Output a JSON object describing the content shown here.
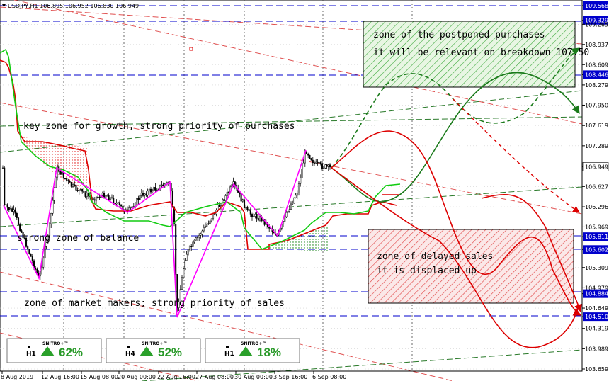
{
  "chart_data": {
    "type": "candlestick",
    "header": "USDJPY,H1  106.895 106.952 106.830 106.949",
    "price_labels": [
      {
        "value": "109.568",
        "highlight": true
      },
      {
        "value": "109.329",
        "highlight": true
      },
      {
        "value": "109.265",
        "highlight": false
      },
      {
        "value": "108.937",
        "highlight": false
      },
      {
        "value": "108.609",
        "highlight": false
      },
      {
        "value": "108.446",
        "highlight": true
      },
      {
        "value": "108.279",
        "highlight": false
      },
      {
        "value": "107.950",
        "highlight": false
      },
      {
        "value": "107.619",
        "highlight": false
      },
      {
        "value": "107.289",
        "highlight": false
      },
      {
        "value": "106.949",
        "highlight": "current"
      },
      {
        "value": "106.627",
        "highlight": false
      },
      {
        "value": "106.296",
        "highlight": false
      },
      {
        "value": "105.969",
        "highlight": false
      },
      {
        "value": "105.811",
        "highlight": true
      },
      {
        "value": "105.602",
        "highlight": true
      },
      {
        "value": "105.309",
        "highlight": false
      },
      {
        "value": "104.979",
        "highlight": false
      },
      {
        "value": "104.884",
        "highlight": true
      },
      {
        "value": "104.649",
        "highlight": false
      },
      {
        "value": "104.510",
        "highlight": true
      },
      {
        "value": "104.319",
        "highlight": false
      },
      {
        "value": "103.989",
        "highlight": false
      },
      {
        "value": "103.659",
        "highlight": false
      }
    ],
    "time_labels": [
      "8 Aug 2019",
      "12 Aug 16:00",
      "15 Aug 08:00",
      "20 Aug 00:00",
      "22 Aug 16:00",
      "27 Aug 08:00",
      "30 Aug 00:00",
      "3 Sep 16:00",
      "6 Sep 08:00"
    ],
    "annotations": {
      "buy_zone_line1": "zone of the postponed purchases",
      "buy_zone_line2": "it will be relevant on breakdown 107.50",
      "growth": "key zone for growth, strong priority of purchases",
      "balance": "strong zone of balance",
      "sell_zone_line1": "zone of delayed sales",
      "sell_zone_line2": "it is displaced up",
      "market_makers": "zone of market makers; strong priority of sales"
    },
    "widgets": [
      {
        "brand": "SNITRO+™",
        "timeframe": "H1",
        "percent": "62%"
      },
      {
        "brand": "SNITRO+™",
        "timeframe": "H4",
        "percent": "52%"
      },
      {
        "brand": "SNITRO+™",
        "timeframe": "H1",
        "percent": "18%"
      }
    ],
    "colors": {
      "bull": "#00aa00",
      "bear": "#dd0000",
      "level": "#0000cc",
      "zigzag": "#ff00ff",
      "grid": "#bbbbbb"
    }
  }
}
